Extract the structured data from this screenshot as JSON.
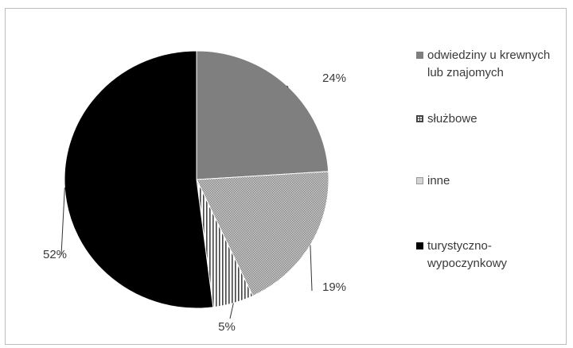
{
  "chart_data": {
    "type": "pie",
    "title": "",
    "categories": [
      "odwiedziny u krewnych lub znajomych",
      "służbowe",
      "inne",
      "turystyczno-wypoczynkowy"
    ],
    "values": [
      24,
      19,
      5,
      52
    ],
    "data_labels": [
      "24%",
      "19%",
      "5%",
      "52%"
    ],
    "colors": [
      "#7f7f7f",
      "#a6a6a6",
      "#ffffff",
      "#000000"
    ],
    "legend": {
      "placement": "right",
      "items": [
        {
          "lines": [
            "odwiedziny u krewnych",
            "lub znajomych"
          ],
          "swatch": "solid-gray"
        },
        {
          "lines": [
            "służbowe"
          ],
          "swatch": "crosshatch"
        },
        {
          "lines": [
            "inne"
          ],
          "swatch": "dotted"
        },
        {
          "lines": [
            "turystyczno-",
            "wypoczynkowy"
          ],
          "swatch": "solid-black"
        }
      ]
    },
    "grid": false
  }
}
